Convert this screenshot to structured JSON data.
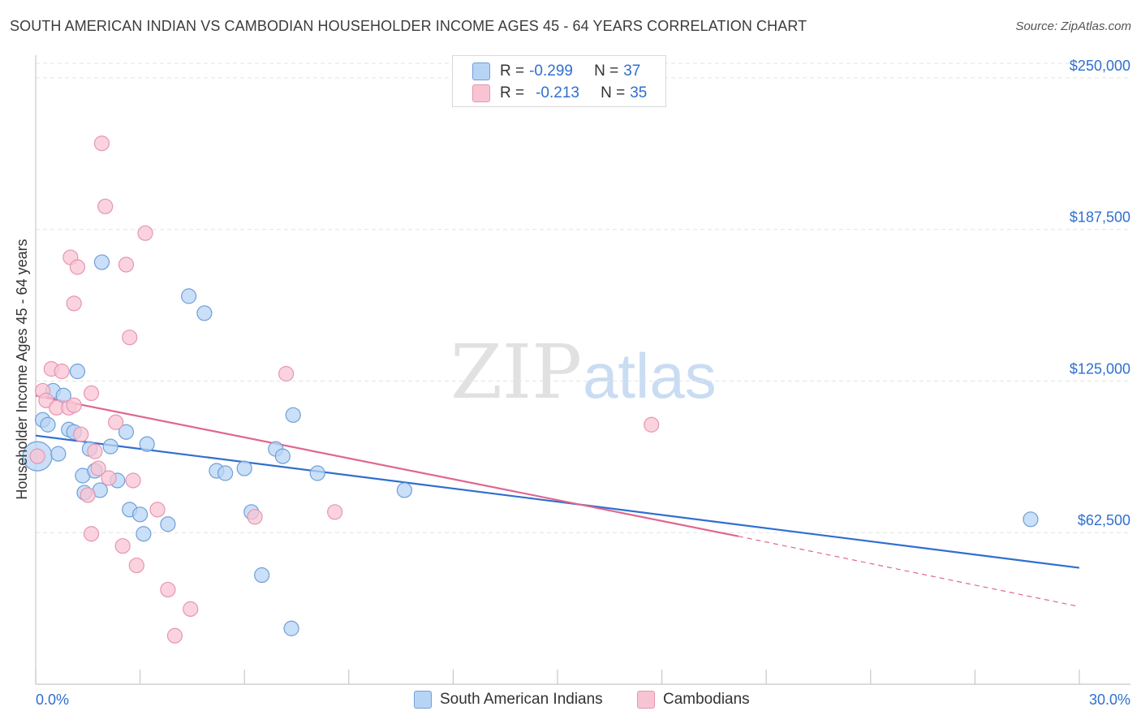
{
  "title": "SOUTH AMERICAN INDIAN VS CAMBODIAN HOUSEHOLDER INCOME AGES 45 - 64 YEARS CORRELATION CHART",
  "source": "Source: ZipAtlas.com",
  "watermark": {
    "zip": "ZIP",
    "atlas": "atlas"
  },
  "legend_top": [
    {
      "r_label": "R = ",
      "r_value": "-0.299",
      "n_label": "N = ",
      "n_value": "37"
    },
    {
      "r_label": "R = ",
      "r_value": "-0.213",
      "n_label": "N = ",
      "n_value": "35"
    }
  ],
  "colors": {
    "blue_fill": "#b8d4f5",
    "blue_stroke": "#6f9fd8",
    "blue_line": "#2f6fcf",
    "pink_fill": "#f8c4d4",
    "pink_stroke": "#e596b0",
    "pink_line": "#e0668f",
    "axis_label": "#2f6fcf",
    "grid": "#e3e3e3"
  },
  "chart_data": {
    "type": "scatter",
    "title": "SOUTH AMERICAN INDIAN VS CAMBODIAN HOUSEHOLDER INCOME AGES 45 - 64 YEARS CORRELATION CHART",
    "xlabel": "",
    "ylabel": "Householder Income Ages 45 - 64 years",
    "x_unit": "%",
    "xlim": [
      0,
      30
    ],
    "ylim": [
      0,
      256000
    ],
    "x_tick_labels": [
      "0.0%",
      "30.0%"
    ],
    "y_ticks": [
      62500,
      125000,
      187500,
      250000
    ],
    "y_tick_labels": [
      "$62,500",
      "$125,000",
      "$187,500",
      "$250,000"
    ],
    "grid": true,
    "legend_position": "bottom",
    "series": [
      {
        "name": "South American Indians",
        "r": -0.299,
        "n": 37,
        "trend": {
          "x": [
            0,
            30
          ],
          "y": [
            102500,
            48000
          ]
        },
        "points": [
          [
            0.05,
            94000
          ],
          [
            0.2,
            109000
          ],
          [
            0.35,
            107000
          ],
          [
            0.5,
            121000
          ],
          [
            0.65,
            95000
          ],
          [
            0.8,
            119000
          ],
          [
            0.95,
            105000
          ],
          [
            1.1,
            104000
          ],
          [
            1.2,
            129000
          ],
          [
            1.35,
            86000
          ],
          [
            1.4,
            79000
          ],
          [
            1.55,
            97000
          ],
          [
            1.7,
            88000
          ],
          [
            1.85,
            80000
          ],
          [
            1.9,
            174000
          ],
          [
            2.15,
            98000
          ],
          [
            2.35,
            84000
          ],
          [
            2.6,
            104000
          ],
          [
            2.7,
            72000
          ],
          [
            3.0,
            70000
          ],
          [
            3.1,
            62000
          ],
          [
            3.2,
            99000
          ],
          [
            3.8,
            66000
          ],
          [
            4.4,
            160000
          ],
          [
            4.85,
            153000
          ],
          [
            5.2,
            88000
          ],
          [
            5.45,
            87000
          ],
          [
            6.0,
            89000
          ],
          [
            6.2,
            71000
          ],
          [
            6.5,
            45000
          ],
          [
            6.9,
            97000
          ],
          [
            7.1,
            94000
          ],
          [
            7.4,
            111000
          ],
          [
            7.35,
            23000
          ],
          [
            8.1,
            87000
          ],
          [
            10.6,
            80000
          ],
          [
            28.6,
            68000
          ]
        ]
      },
      {
        "name": "Cambodians",
        "r": -0.213,
        "n": 35,
        "trend": {
          "x": [
            0,
            20.2
          ],
          "y": [
            119000,
            61000
          ]
        },
        "trend_dashed": {
          "x": [
            20.2,
            30
          ],
          "y": [
            61000,
            32000
          ]
        },
        "points": [
          [
            0.05,
            94000
          ],
          [
            0.2,
            121000
          ],
          [
            0.3,
            117000
          ],
          [
            0.45,
            130000
          ],
          [
            0.6,
            114000
          ],
          [
            0.75,
            129000
          ],
          [
            0.95,
            114000
          ],
          [
            1.1,
            115000
          ],
          [
            1.3,
            103000
          ],
          [
            1.5,
            78000
          ],
          [
            1.6,
            62000
          ],
          [
            1.7,
            96000
          ],
          [
            1.8,
            89000
          ],
          [
            1.9,
            223000
          ],
          [
            2.0,
            197000
          ],
          [
            2.1,
            85000
          ],
          [
            2.3,
            108000
          ],
          [
            2.5,
            57000
          ],
          [
            2.6,
            173000
          ],
          [
            2.7,
            143000
          ],
          [
            2.8,
            84000
          ],
          [
            2.9,
            49000
          ],
          [
            1.0,
            176000
          ],
          [
            1.1,
            157000
          ],
          [
            3.15,
            186000
          ],
          [
            3.5,
            72000
          ],
          [
            3.8,
            39000
          ],
          [
            4.0,
            20000
          ],
          [
            4.45,
            31000
          ],
          [
            6.3,
            69000
          ],
          [
            7.2,
            128000
          ],
          [
            8.6,
            71000
          ],
          [
            17.7,
            107000
          ],
          [
            1.2,
            172000
          ],
          [
            1.6,
            120000
          ]
        ]
      }
    ]
  }
}
